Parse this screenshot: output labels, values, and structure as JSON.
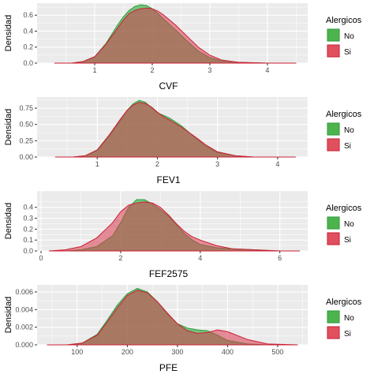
{
  "figure": {
    "legend": {
      "title": "Alergicos",
      "entries": [
        {
          "label": "No",
          "color": "#4DB34D"
        },
        {
          "label": "Si",
          "color": "#E0505F"
        }
      ]
    },
    "fill_colors": {
      "No": "#3CB44B",
      "Si": "#D83A4F"
    },
    "line_colors": {
      "No": "#2E9E3E",
      "Si": "#CC1F35"
    },
    "panel_bg": "#EBEBEB",
    "grid_color": "#FFFFFF"
  },
  "chart_data": [
    {
      "type": "area",
      "xlabel": "CVF",
      "ylabel": "Densidad",
      "xlim": [
        0.0,
        4.7
      ],
      "ylim": [
        0.0,
        0.75
      ],
      "xticks": [
        1,
        2,
        3,
        4
      ],
      "yticks": [
        0.0,
        0.2,
        0.4,
        0.6
      ],
      "ytick_labels": [
        "0.0",
        "0.2",
        "0.4",
        "0.6"
      ],
      "series": [
        {
          "name": "No",
          "x": [
            0.3,
            0.6,
            0.8,
            1.0,
            1.2,
            1.4,
            1.5,
            1.6,
            1.7,
            1.8,
            1.9,
            2.0,
            2.1,
            2.2,
            2.4,
            2.6,
            2.8,
            3.0,
            3.2,
            3.5,
            4.0,
            4.5
          ],
          "y": [
            0.0,
            0.0,
            0.02,
            0.08,
            0.25,
            0.48,
            0.58,
            0.66,
            0.71,
            0.73,
            0.72,
            0.68,
            0.62,
            0.55,
            0.42,
            0.28,
            0.15,
            0.07,
            0.03,
            0.01,
            0.0,
            0.0
          ]
        },
        {
          "name": "Si",
          "x": [
            0.3,
            0.6,
            0.8,
            1.0,
            1.2,
            1.4,
            1.5,
            1.6,
            1.7,
            1.8,
            1.9,
            2.0,
            2.1,
            2.2,
            2.4,
            2.6,
            2.8,
            3.0,
            3.2,
            3.5,
            4.0,
            4.5
          ],
          "y": [
            0.0,
            0.0,
            0.02,
            0.08,
            0.24,
            0.44,
            0.54,
            0.62,
            0.66,
            0.68,
            0.69,
            0.68,
            0.65,
            0.6,
            0.48,
            0.34,
            0.2,
            0.1,
            0.04,
            0.01,
            0.0,
            0.0
          ]
        }
      ]
    },
    {
      "type": "area",
      "xlabel": "FEV1",
      "ylabel": "Densidad",
      "xlim": [
        0.0,
        4.5
      ],
      "ylim": [
        0.0,
        0.92
      ],
      "xticks": [
        1,
        2,
        3,
        4
      ],
      "yticks": [
        0.0,
        0.25,
        0.5,
        0.75
      ],
      "ytick_labels": [
        "0.00",
        "0.25",
        "0.50",
        "0.75"
      ],
      "series": [
        {
          "name": "No",
          "x": [
            0.3,
            0.6,
            0.8,
            1.0,
            1.2,
            1.4,
            1.5,
            1.6,
            1.7,
            1.8,
            1.9,
            2.0,
            2.1,
            2.2,
            2.4,
            2.6,
            2.8,
            3.0,
            3.3,
            3.6,
            4.0,
            4.3
          ],
          "y": [
            0.0,
            0.0,
            0.02,
            0.1,
            0.32,
            0.58,
            0.72,
            0.82,
            0.87,
            0.84,
            0.76,
            0.68,
            0.64,
            0.6,
            0.48,
            0.32,
            0.17,
            0.07,
            0.02,
            0.0,
            0.0,
            0.0
          ]
        },
        {
          "name": "Si",
          "x": [
            0.3,
            0.6,
            0.8,
            1.0,
            1.2,
            1.4,
            1.5,
            1.6,
            1.7,
            1.8,
            1.9,
            2.0,
            2.1,
            2.2,
            2.4,
            2.6,
            2.8,
            3.0,
            3.3,
            3.6,
            4.0,
            4.3
          ],
          "y": [
            0.0,
            0.0,
            0.02,
            0.11,
            0.34,
            0.6,
            0.72,
            0.8,
            0.84,
            0.82,
            0.77,
            0.69,
            0.62,
            0.57,
            0.46,
            0.33,
            0.19,
            0.08,
            0.02,
            0.0,
            0.0,
            0.0
          ]
        }
      ]
    },
    {
      "type": "area",
      "xlabel": "FEF2575",
      "ylabel": "Densidad",
      "xlim": [
        -0.1,
        6.7
      ],
      "ylim": [
        0.0,
        0.55
      ],
      "xticks": [
        0,
        2,
        4,
        6
      ],
      "yticks": [
        0.0,
        0.1,
        0.2,
        0.3,
        0.4
      ],
      "ytick_labels": [
        "0.0",
        "0.1",
        "0.2",
        "0.3",
        "0.4"
      ],
      "series": [
        {
          "name": "No",
          "x": [
            0.2,
            0.6,
            1.0,
            1.4,
            1.8,
            2.0,
            2.2,
            2.4,
            2.6,
            2.8,
            3.0,
            3.2,
            3.4,
            3.6,
            3.8,
            4.0,
            4.4,
            4.8,
            5.4,
            6.0,
            6.5
          ],
          "y": [
            0.0,
            0.0,
            0.01,
            0.04,
            0.14,
            0.26,
            0.4,
            0.47,
            0.47,
            0.43,
            0.38,
            0.32,
            0.24,
            0.16,
            0.1,
            0.06,
            0.03,
            0.02,
            0.01,
            0.0,
            0.0
          ]
        },
        {
          "name": "Si",
          "x": [
            0.2,
            0.6,
            1.0,
            1.4,
            1.8,
            2.0,
            2.2,
            2.4,
            2.6,
            2.8,
            3.0,
            3.2,
            3.4,
            3.6,
            3.8,
            4.0,
            4.4,
            4.8,
            5.4,
            6.0,
            6.5
          ],
          "y": [
            0.0,
            0.01,
            0.04,
            0.12,
            0.26,
            0.36,
            0.42,
            0.44,
            0.45,
            0.44,
            0.4,
            0.33,
            0.25,
            0.18,
            0.13,
            0.1,
            0.05,
            0.02,
            0.01,
            0.0,
            0.0
          ]
        }
      ]
    },
    {
      "type": "area",
      "xlabel": "PFE",
      "ylabel": "Densidad",
      "xlim": [
        20,
        560
      ],
      "ylim": [
        0.0,
        0.0068
      ],
      "xticks": [
        100,
        200,
        300,
        400,
        500
      ],
      "yticks": [
        0.0,
        0.002,
        0.004,
        0.006
      ],
      "ytick_labels": [
        "0.000",
        "0.002",
        "0.004",
        "0.006"
      ],
      "series": [
        {
          "name": "No",
          "x": [
            40,
            80,
            110,
            140,
            160,
            180,
            200,
            220,
            240,
            260,
            280,
            300,
            320,
            340,
            360,
            380,
            400,
            440,
            480,
            540
          ],
          "y": [
            0.0,
            0.0,
            0.0002,
            0.0012,
            0.0028,
            0.0045,
            0.0058,
            0.0064,
            0.006,
            0.0049,
            0.0035,
            0.0024,
            0.0019,
            0.0017,
            0.0016,
            0.0011,
            0.0005,
            0.0001,
            0.0,
            0.0
          ]
        },
        {
          "name": "Si",
          "x": [
            40,
            80,
            110,
            140,
            160,
            180,
            200,
            220,
            240,
            260,
            280,
            300,
            320,
            340,
            360,
            380,
            400,
            440,
            480,
            540
          ],
          "y": [
            0.0,
            0.0,
            0.0002,
            0.0011,
            0.0026,
            0.0042,
            0.0056,
            0.0062,
            0.0059,
            0.0049,
            0.0036,
            0.0024,
            0.0016,
            0.0013,
            0.0014,
            0.0017,
            0.0015,
            0.0006,
            0.0001,
            0.0
          ]
        }
      ]
    }
  ]
}
